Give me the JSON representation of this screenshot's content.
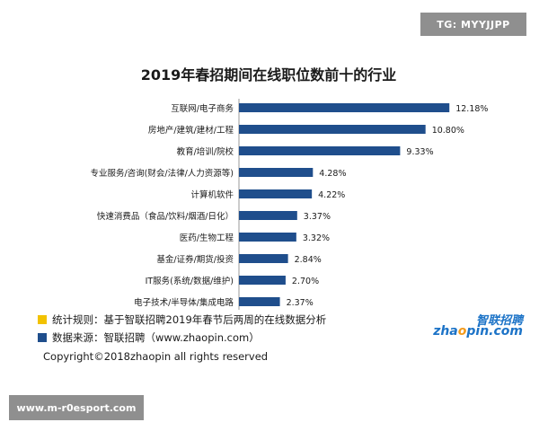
{
  "watermark_top": "TG: MYYJJPP",
  "watermark_bottom": "www.m-r0esport.com",
  "legend": [
    {
      "text": "统计规则：基于智联招聘2019年春节后两周的在线数据分析",
      "color": "#f2c200"
    },
    {
      "text": "数据来源：智联招聘（www.zhaopin.com）",
      "color": "#1f4e8c"
    }
  ],
  "brand": {
    "name_cn": "智联招聘",
    "name_en_pre": "zha",
    "name_en_mid": "o",
    "name_en_post": "pin.com"
  },
  "copyright": "Copyright©2018zhaopin all rights reserved",
  "chart_data": {
    "type": "bar",
    "orientation": "horizontal",
    "title": "2019年春招期间在线职位数前十的行业",
    "bar_color": "#1f4e8c",
    "categories": [
      "互联网/电子商务",
      "房地产/建筑/建材/工程",
      "教育/培训/院校",
      "专业服务/咨询(财会/法律/人力资源等)",
      "计算机软件",
      "快速消费品（食品/饮料/烟酒/日化）",
      "医药/生物工程",
      "基金/证券/期货/投资",
      "IT服务(系统/数据/维护)",
      "电子技术/半导体/集成电路"
    ],
    "values": [
      12.18,
      10.8,
      9.33,
      4.28,
      4.22,
      3.37,
      3.32,
      2.84,
      2.7,
      2.37
    ],
    "value_labels": [
      "12.18%",
      "10.80%",
      "9.33%",
      "4.28%",
      "4.22%",
      "3.37%",
      "3.32%",
      "2.84%",
      "2.70%",
      "2.37%"
    ],
    "xlim": [
      0,
      13
    ]
  }
}
